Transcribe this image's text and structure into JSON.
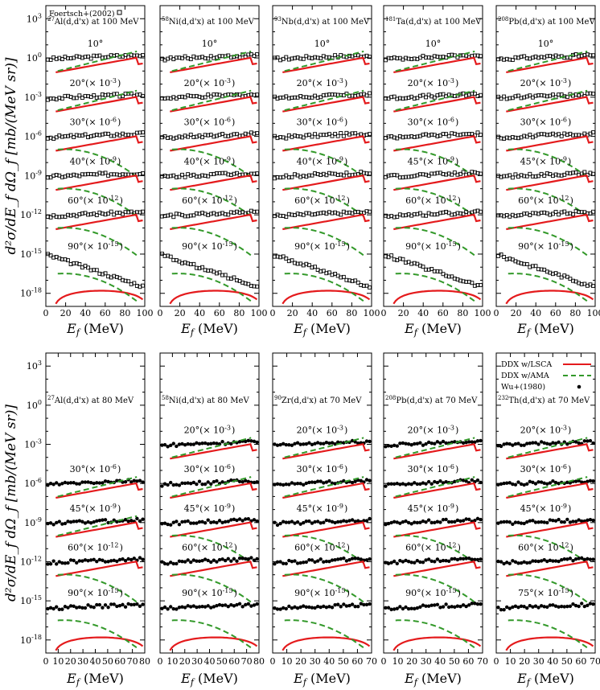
{
  "chart_data": [
    {
      "type": "line",
      "row": "top",
      "ylabel": "d²σ/dE_f dΩ_f [mb/(MeV sr)]",
      "yscale": "log",
      "ylim": [
        1e-19,
        10000.0
      ],
      "yticks": [
        "10^3",
        "10^0",
        "10^-3",
        "10^-6",
        "10^-9",
        "10^-12",
        "10^-15",
        "10^-18"
      ],
      "xlabel_italic": "E_f",
      "xlabel_unit": "(MeV)",
      "grid": false,
      "legend_position": "top-left of first panel",
      "legend": [
        {
          "name": "Foertsch+(2002)",
          "marker": "open-square"
        }
      ],
      "series_styles": {
        "DDX w/LSCA": "#e41a1c solid",
        "DDX w/AMA": "#33992a dashed"
      },
      "panels": [
        {
          "title": "27Al(d,d'x) at 100 MeV",
          "xlim": [
            0,
            100
          ],
          "xticks": [
            "0",
            "20",
            "40",
            "60",
            "80",
            "100"
          ],
          "angle_labels": [
            "10°",
            "20°(× 10^-3)",
            "30°(× 10^-6)",
            "40°(× 10^-9)",
            "60°(× 10^-12)",
            "90°(× 10^-15)"
          ],
          "series": [
            {
              "name": "10°",
              "scaled_exp": [
                [
                  5,
                  0.3
                ],
                [
                  20,
                  0.6
                ],
                [
                  40,
                  0.9
                ],
                [
                  60,
                  1.3
                ],
                [
                  80,
                  2.0
                ],
                [
                  95,
                  3.0
                ]
              ],
              "lsca": [
                [
                  10,
                  0.02
                ],
                [
                  15,
                  0.04
                ],
                [
                  30,
                  0.08
                ],
                [
                  60,
                  0.3
                ],
                [
                  85,
                  1.0
                ],
                [
                  95,
                  0.8
                ]
              ],
              "ama": [
                [
                  15,
                  0.05
                ],
                [
                  30,
                  0.2
                ],
                [
                  60,
                  1.0
                ],
                [
                  90,
                  4.0
                ]
              ]
            },
            {
              "name": "20°(× 10^-3)",
              "scaled_exp": [
                [
                  5,
                  0.0004
                ],
                [
                  40,
                  0.0008
                ],
                [
                  70,
                  0.0012
                ],
                [
                  95,
                  0.002
                ]
              ],
              "lsca": [
                [
                  10,
                  0.0001
                ],
                [
                  40,
                  0.0003
                ],
                [
                  80,
                  0.001
                ],
                [
                  95,
                  0.0005
                ]
              ],
              "ama": [
                [
                  10,
                  5e-05
                ],
                [
                  60,
                  0.001
                ],
                [
                  90,
                  0.0015
                ]
              ]
            },
            {
              "name": "30°(× 10^-6)",
              "scaled_exp": [
                [
                  5,
                  8e-07
                ],
                [
                  50,
                  1e-06
                ],
                [
                  95,
                  1.5e-06
                ]
              ],
              "lsca": [
                [
                  10,
                  8e-08
                ],
                [
                  50,
                  3e-07
                ],
                [
                  90,
                  1e-06
                ],
                [
                  97,
                  3e-07
                ]
              ],
              "ama": [
                [
                  10,
                  1e-07
                ],
                [
                  50,
                  4e-07
                ],
                [
                  80,
                  1e-07
                ],
                [
                  95,
                  1e-08
                ]
              ]
            },
            {
              "name": "40°(× 10^-9)",
              "scaled_exp": [
                [
                  5,
                  6e-10
                ],
                [
                  50,
                  8e-10
                ],
                [
                  95,
                  1e-09
                ]
              ],
              "lsca": [
                [
                  10,
                  5e-11
                ],
                [
                  50,
                  1.5e-10
                ],
                [
                  90,
                  5e-10
                ]
              ],
              "ama": [
                [
                  10,
                  8e-11
                ],
                [
                  50,
                  1e-10
                ],
                [
                  90,
                  2e-12
                ]
              ]
            },
            {
              "name": "60°(× 10^-12)",
              "scaled_exp": [
                [
                  5,
                  5e-13
                ],
                [
                  50,
                  3e-13
                ],
                [
                  95,
                  1.5e-13
                ]
              ],
              "lsca": [
                [
                  10,
                  3e-15
                ],
                [
                  50,
                  1e-14
                ],
                [
                  90,
                  3e-14
                ],
                [
                  98,
                  1e-15
                ]
              ],
              "ama": [
                [
                  10,
                  2e-15
                ],
                [
                  40,
                  3e-15
                ],
                [
                  80,
                  1e-17
                ]
              ]
            },
            {
              "name": "90°(× 10^-15)",
              "scaled_exp": [
                [
                  5,
                  5e-15
                ],
                [
                  40,
                  2e-16
                ],
                [
                  80,
                  3e-18
                ]
              ],
              "lsca": [
                [
                  10,
                  1e-18
                ],
                [
                  30,
                  2e-18
                ],
                [
                  60,
                  1e-18
                ]
              ],
              "ama": [
                [
                  10,
                  5e-19
                ],
                [
                  25,
                  1e-19
                ]
              ]
            }
          ]
        },
        {
          "title": "58Ni(d,d'x) at 100 MeV",
          "xlim": [
            0,
            100
          ],
          "xticks": [
            "0",
            "20",
            "40",
            "60",
            "80",
            "100"
          ],
          "angle_labels": [
            "10°",
            "20°(× 10^-3)",
            "30°(× 10^-6)",
            "40°(× 10^-9)",
            "60°(× 10^-12)",
            "90°(× 10^-15)"
          ]
        },
        {
          "title": "93Nb(d,d'x) at 100 MeV",
          "xlim": [
            0,
            100
          ],
          "xticks": [
            "0",
            "20",
            "40",
            "60",
            "80",
            "100"
          ],
          "angle_labels": [
            "10°",
            "20°(× 10^-3)",
            "30°(× 10^-6)",
            "40°(× 10^-9)",
            "60°(× 10^-12)",
            "90°(× 10^-15)"
          ]
        },
        {
          "title": "181Ta(d,d'x) at 100 MeV",
          "xlim": [
            0,
            100
          ],
          "xticks": [
            "0",
            "20",
            "40",
            "60",
            "80",
            "100"
          ],
          "angle_labels": [
            "10°",
            "20°(× 10^-3)",
            "30°(× 10^-6)",
            "45°(× 10^-9)",
            "60°(× 10^-12)",
            "90°(× 10^-15)"
          ]
        },
        {
          "title": "208Pb(d,d'x) at 100 MeV",
          "xlim": [
            0,
            100
          ],
          "xticks": [
            "0",
            "20",
            "40",
            "60",
            "80",
            "100"
          ],
          "angle_labels": [
            "10°",
            "20°(× 10^-3)",
            "30°(× 10^-6)",
            "45°(× 10^-9)",
            "60°(× 10^-12)",
            "90°(× 10^-15)"
          ]
        }
      ]
    },
    {
      "type": "line",
      "row": "bottom",
      "ylabel": "d²σ/dE_f dΩ_f [mb/(MeV sr)]",
      "yscale": "log",
      "ylim": [
        1e-19,
        10000.0
      ],
      "yticks": [
        "10^3",
        "10^0",
        "10^-3",
        "10^-6",
        "10^-9",
        "10^-12",
        "10^-15",
        "10^-18"
      ],
      "xlabel_italic": "E_f",
      "xlabel_unit": "(MeV)",
      "grid": false,
      "legend_position": "top of last panel",
      "legend": [
        {
          "name": "DDX w/LSCA",
          "style": "solid",
          "color": "#e41a1c"
        },
        {
          "name": "DDX w/AMA",
          "style": "dashed",
          "color": "#33992a"
        },
        {
          "name": "Wu+(1980)",
          "marker": "filled-circle"
        }
      ],
      "panels": [
        {
          "title": "27Al(d,d'x) at 80 MeV",
          "xlim": [
            0,
            80
          ],
          "xticks": [
            "0",
            "10",
            "20",
            "30",
            "40",
            "50",
            "60",
            "70",
            "80"
          ],
          "angle_labels": [
            "30°(× 10^-6)",
            "45°(× 10^-9)",
            "60°(× 10^-12)",
            "90°(× 10^-15)"
          ]
        },
        {
          "title": "58Ni(d,d'x) at 80 MeV",
          "xlim": [
            0,
            80
          ],
          "xticks": [
            "0",
            "10",
            "20",
            "30",
            "40",
            "50",
            "60",
            "70",
            "80"
          ],
          "angle_labels": [
            "20°(× 10^-3)",
            "30°(× 10^-6)",
            "45°(× 10^-9)",
            "60°(× 10^-12)",
            "90°(× 10^-15)"
          ]
        },
        {
          "title": "90Zr(d,d'x) at 70 MeV",
          "xlim": [
            0,
            70
          ],
          "xticks": [
            "0",
            "10",
            "20",
            "30",
            "40",
            "50",
            "60",
            "70"
          ],
          "angle_labels": [
            "20°(× 10^-3)",
            "30°(× 10^-6)",
            "45°(× 10^-9)",
            "60°(× 10^-12)",
            "90°(× 10^-15)"
          ]
        },
        {
          "title": "208Pb(d,d'x) at 70 MeV",
          "xlim": [
            0,
            70
          ],
          "xticks": [
            "0",
            "10",
            "20",
            "30",
            "40",
            "50",
            "60",
            "70"
          ],
          "angle_labels": [
            "20°(× 10^-3)",
            "30°(× 10^-6)",
            "45°(× 10^-9)",
            "60°(× 10^-12)",
            "90°(× 10^-15)"
          ]
        },
        {
          "title": "232Th(d,d'x) at 70 MeV",
          "xlim": [
            0,
            70
          ],
          "xticks": [
            "0",
            "10",
            "20",
            "30",
            "40",
            "50",
            "60",
            "70"
          ],
          "angle_labels": [
            "20°(× 10^-3)",
            "30°(× 10^-6)",
            "45°(× 10^-9)",
            "60°(× 10^-12)",
            "75°(× 10^-15)"
          ]
        }
      ]
    }
  ]
}
